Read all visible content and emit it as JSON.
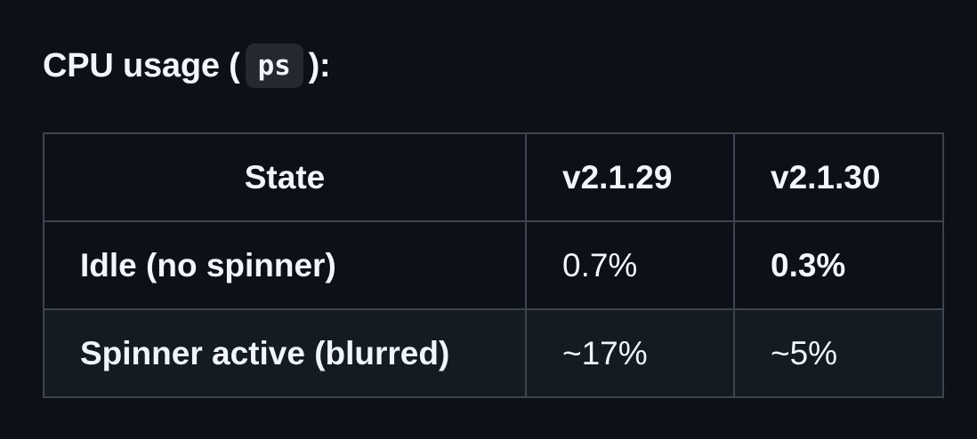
{
  "heading": {
    "prefix": "CPU usage (",
    "code": "ps",
    "suffix": "):"
  },
  "table": {
    "headers": [
      "State",
      "v2.1.29",
      "v2.1.30"
    ],
    "rows": [
      {
        "state": "Idle (no spinner)",
        "v2_1_29": "0.7%",
        "v2_1_30": "0.3%"
      },
      {
        "state": "Spinner active (blurred)",
        "v2_1_29": "~17%",
        "v2_1_30": "~5%"
      }
    ]
  },
  "colors": {
    "background": "#0d1117",
    "row_alt": "#151b23",
    "border": "#3d444d",
    "text": "#f0f6fc",
    "code_bg": "#25292f"
  }
}
